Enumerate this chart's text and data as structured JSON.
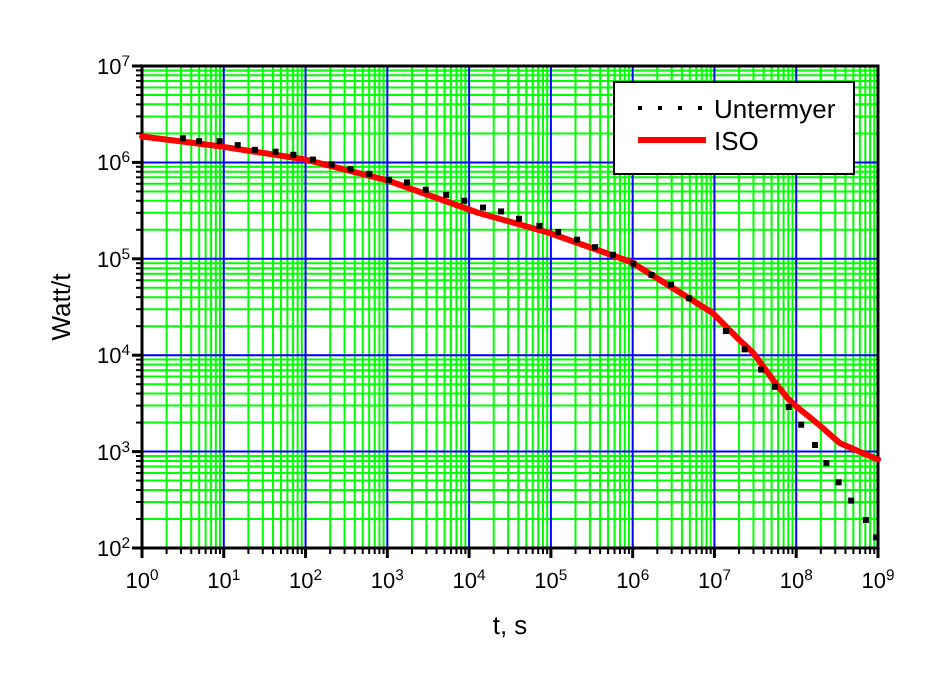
{
  "chart_data": {
    "type": "line",
    "xlabel": "t, s",
    "ylabel": "Watt/t",
    "log": "xy",
    "grid": true,
    "legend": "top right",
    "xlim": [
      1,
      1000000000
    ],
    "ylim": [
      100,
      10000000
    ],
    "xticks": [
      {
        "value": 1,
        "label": "10$^{0}$"
      },
      {
        "value": 10,
        "label": "10$^{1}$"
      },
      {
        "value": 100,
        "label": "10$^{2}$"
      },
      {
        "value": 1000,
        "label": "10$^{3}$"
      },
      {
        "value": 10000,
        "label": "10$^{4}$"
      },
      {
        "value": 100000,
        "label": "10$^{5}$"
      },
      {
        "value": 1000000,
        "label": "10$^{6}$"
      },
      {
        "value": 10000000,
        "label": "10$^{7}$"
      },
      {
        "value": 100000000,
        "label": "10$^{8}$"
      },
      {
        "value": 1000000000,
        "label": "10$^{9}$"
      },
      {
        "value": 2,
        "label": null
      },
      {
        "value": 3,
        "label": null
      },
      {
        "value": 4,
        "label": null
      },
      {
        "value": 5,
        "label": null
      },
      {
        "value": 6,
        "label": null
      },
      {
        "value": 7,
        "label": null
      },
      {
        "value": 8,
        "label": null
      },
      {
        "value": 9,
        "label": null
      },
      {
        "value": 20,
        "label": null
      },
      {
        "value": 30,
        "label": null
      },
      {
        "value": 40,
        "label": null
      },
      {
        "value": 50,
        "label": null
      },
      {
        "value": 60,
        "label": null
      },
      {
        "value": 70,
        "label": null
      },
      {
        "value": 80,
        "label": null
      },
      {
        "value": 90,
        "label": null
      },
      {
        "value": 200,
        "label": null
      },
      {
        "value": 300,
        "label": null
      },
      {
        "value": 400,
        "label": null
      },
      {
        "value": 500,
        "label": null
      },
      {
        "value": 600,
        "label": null
      },
      {
        "value": 700,
        "label": null
      },
      {
        "value": 800,
        "label": null
      },
      {
        "value": 900,
        "label": null
      },
      {
        "value": 2000,
        "label": null
      },
      {
        "value": 3000,
        "label": null
      },
      {
        "value": 4000,
        "label": null
      },
      {
        "value": 5000,
        "label": null
      },
      {
        "value": 6000,
        "label": null
      },
      {
        "value": 7000,
        "label": null
      },
      {
        "value": 8000,
        "label": null
      },
      {
        "value": 9000,
        "label": null
      },
      {
        "value": 20000,
        "label": null
      },
      {
        "value": 30000,
        "label": null
      },
      {
        "value": 40000,
        "label": null
      },
      {
        "value": 50000,
        "label": null
      },
      {
        "value": 60000,
        "label": null
      },
      {
        "value": 70000,
        "label": null
      },
      {
        "value": 80000,
        "label": null
      },
      {
        "value": 90000,
        "label": null
      },
      {
        "value": 200000,
        "label": null
      },
      {
        "value": 300000,
        "label": null
      },
      {
        "value": 400000,
        "label": null
      },
      {
        "value": 500000,
        "label": null
      },
      {
        "value": 600000,
        "label": null
      },
      {
        "value": 700000,
        "label": null
      },
      {
        "value": 800000,
        "label": null
      },
      {
        "value": 900000,
        "label": null
      },
      {
        "value": 2000000,
        "label": null
      },
      {
        "value": 3000000,
        "label": null
      },
      {
        "value": 4000000,
        "label": null
      },
      {
        "value": 5000000,
        "label": null
      },
      {
        "value": 6000000,
        "label": null
      },
      {
        "value": 7000000,
        "label": null
      },
      {
        "value": 8000000,
        "label": null
      },
      {
        "value": 9000000,
        "label": null
      },
      {
        "value": 20000000,
        "label": null
      },
      {
        "value": 30000000,
        "label": null
      },
      {
        "value": 40000000,
        "label": null
      },
      {
        "value": 50000000,
        "label": null
      },
      {
        "value": 60000000,
        "label": null
      },
      {
        "value": 70000000,
        "label": null
      },
      {
        "value": 80000000,
        "label": null
      },
      {
        "value": 90000000,
        "label": null
      },
      {
        "value": 200000000,
        "label": null
      },
      {
        "value": 300000000,
        "label": null
      },
      {
        "value": 400000000,
        "label": null
      },
      {
        "value": 500000000,
        "label": null
      },
      {
        "value": 600000000,
        "label": null
      },
      {
        "value": 700000000,
        "label": null
      },
      {
        "value": 800000000,
        "label": null
      },
      {
        "value": 900000000,
        "label": null
      }
    ],
    "yticks": [
      {
        "value": 100,
        "label": "10$^{2}$"
      },
      {
        "value": 1000,
        "label": "10$^{3}$"
      },
      {
        "value": 10000,
        "label": "10$^{4}$"
      },
      {
        "value": 100000,
        "label": "10$^{5}$"
      },
      {
        "value": 1000000,
        "label": "10$^{6}$"
      },
      {
        "value": 10000000,
        "label": "10$^{7}$"
      },
      {
        "value": 200,
        "label": null
      },
      {
        "value": 300,
        "label": null
      },
      {
        "value": 400,
        "label": null
      },
      {
        "value": 500,
        "label": null
      },
      {
        "value": 600,
        "label": null
      },
      {
        "value": 700,
        "label": null
      },
      {
        "value": 800,
        "label": null
      },
      {
        "value": 900,
        "label": null
      },
      {
        "value": 2000,
        "label": null
      },
      {
        "value": 3000,
        "label": null
      },
      {
        "value": 4000,
        "label": null
      },
      {
        "value": 5000,
        "label": null
      },
      {
        "value": 6000,
        "label": null
      },
      {
        "value": 7000,
        "label": null
      },
      {
        "value": 8000,
        "label": null
      },
      {
        "value": 9000,
        "label": null
      },
      {
        "value": 20000,
        "label": null
      },
      {
        "value": 30000,
        "label": null
      },
      {
        "value": 40000,
        "label": null
      },
      {
        "value": 50000,
        "label": null
      },
      {
        "value": 60000,
        "label": null
      },
      {
        "value": 70000,
        "label": null
      },
      {
        "value": 80000,
        "label": null
      },
      {
        "value": 90000,
        "label": null
      },
      {
        "value": 200000,
        "label": null
      },
      {
        "value": 300000,
        "label": null
      },
      {
        "value": 400000,
        "label": null
      },
      {
        "value": 500000,
        "label": null
      },
      {
        "value": 600000,
        "label": null
      },
      {
        "value": 700000,
        "label": null
      },
      {
        "value": 800000,
        "label": null
      },
      {
        "value": 900000,
        "label": null
      },
      {
        "value": 2000000,
        "label": null
      },
      {
        "value": 3000000,
        "label": null
      },
      {
        "value": 4000000,
        "label": null
      },
      {
        "value": 5000000,
        "label": null
      },
      {
        "value": 6000000,
        "label": null
      },
      {
        "value": 7000000,
        "label": null
      },
      {
        "value": 8000000,
        "label": null
      },
      {
        "value": 9000000,
        "label": null
      }
    ],
    "series": [
      {
        "name": "Untermyer",
        "type": "scatter",
        "marker": "square",
        "color": "#000000",
        "x": [
          3.16,
          5,
          8.9,
          14.8,
          24,
          43,
          71,
          123,
          209,
          355,
          603,
          1050,
          1740,
          2950,
          5250,
          8710,
          14800,
          24600,
          40700,
          72400,
          123000,
          209000,
          347000,
          575000,
          1020000,
          1700000,
          2950000,
          4900000,
          13800000,
          23400000,
          37200000,
          55000000,
          81000000,
          115000000,
          170000000,
          234000000,
          330000000,
          470000000,
          710000000,
          950000000
        ],
        "values": [
          1780000,
          1660000,
          1660000,
          1510000,
          1350000,
          1290000,
          1200000,
          1070000,
          950000,
          850000,
          760000,
          660000,
          620000,
          520000,
          460000,
          400000,
          340000,
          310000,
          260000,
          220000,
          190000,
          158000,
          132000,
          110000,
          89000,
          68000,
          54000,
          39000,
          17800,
          11500,
          7100,
          4700,
          2900,
          1900,
          1170,
          760,
          480,
          310,
          195,
          129
        ]
      },
      {
        "name": "ISO",
        "color": "#ff0000",
        "line_style": "solid",
        "x": [
          1,
          10,
          100,
          1000,
          13000,
          95000,
          950000,
          9500000,
          20000000,
          30000000,
          56000000,
          78000000,
          100000000,
          190000000,
          340000000,
          590000000,
          1000000000
        ],
        "values": [
          1860000,
          1450000,
          1070000,
          650000,
          300000,
          186000,
          93000,
          27500,
          14500,
          10500,
          5100,
          3600,
          2950,
          1900,
          1230,
          1000,
          830
        ]
      }
    ]
  }
}
